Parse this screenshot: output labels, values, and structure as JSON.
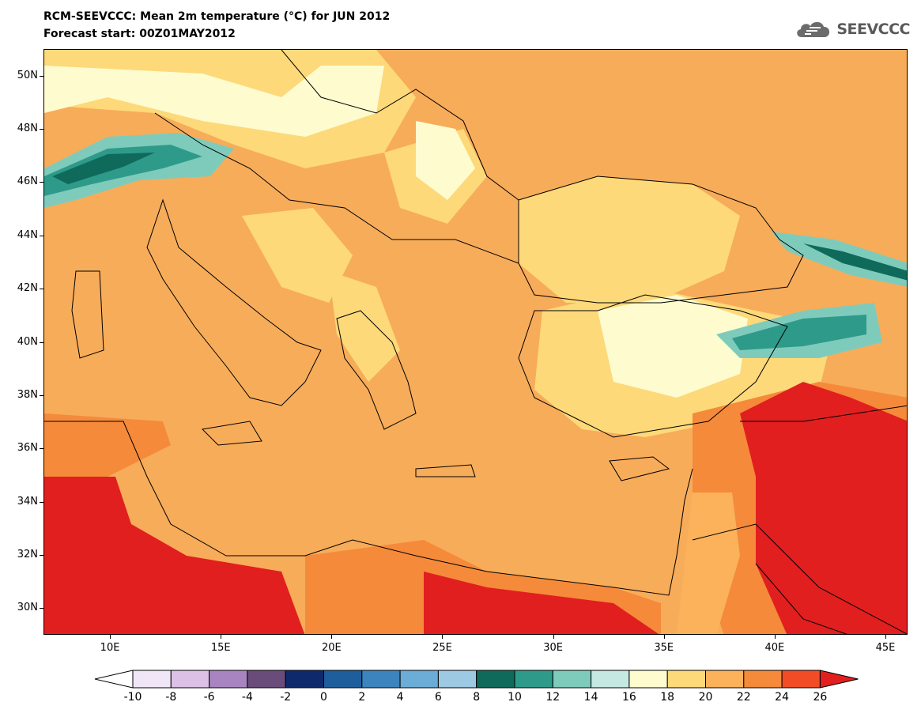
{
  "title_line1": "RCM-SEEVCCC: Mean 2m temperature (°C) for JUN 2012",
  "title_line2": "Forecast start: 00Z01MAY2012",
  "logo_text": "SEEVCCC",
  "logo_icon": "cloud-icon",
  "map": {
    "lon_range": [
      7,
      46
    ],
    "lat_range": [
      29,
      51
    ],
    "lat_labels": [
      "50N",
      "48N",
      "46N",
      "44N",
      "42N",
      "40N",
      "38N",
      "36N",
      "34N",
      "32N",
      "30N"
    ],
    "lat_values": [
      50,
      48,
      46,
      44,
      42,
      40,
      38,
      36,
      34,
      32,
      30
    ],
    "lon_labels": [
      "10E",
      "15E",
      "20E",
      "25E",
      "30E",
      "35E",
      "40E",
      "45E"
    ],
    "lon_values": [
      10,
      15,
      20,
      25,
      30,
      35,
      40,
      45
    ]
  },
  "colorbar": {
    "labels": [
      "-10",
      "-8",
      "-6",
      "-4",
      "-2",
      "0",
      "2",
      "4",
      "6",
      "8",
      "10",
      "12",
      "14",
      "16",
      "18",
      "20",
      "22",
      "24",
      "26"
    ],
    "under_color": "#ffffff",
    "over_color": "#e11f1f",
    "colors": [
      "#f0e6f7",
      "#dcc1e6",
      "#a885c0",
      "#6a4c7a",
      "#0e2a6b",
      "#1f5e9c",
      "#3b84bd",
      "#6badd7",
      "#9dc9e3",
      "#0f6a5b",
      "#2e9a8a",
      "#7fcbbb",
      "#c6e8e2",
      "#fefccf",
      "#fdd97a",
      "#fbb25a",
      "#f58a3a",
      "#f04d27"
    ]
  }
}
